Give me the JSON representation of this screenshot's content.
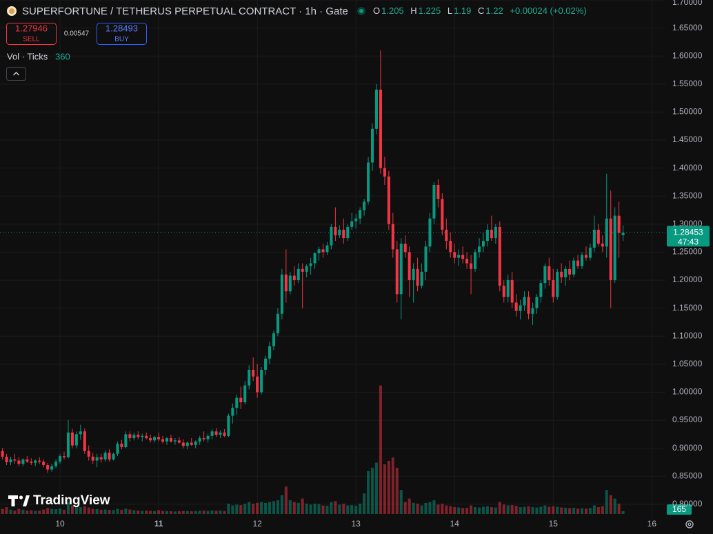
{
  "header": {
    "title": "SUPERFORTUNE / TETHERUS PERPETUAL CONTRACT · 1h · Gate",
    "ohlc_labels": [
      "O",
      "H",
      "L",
      "C"
    ],
    "change": "+0.00024 (+0.02%)"
  },
  "trade": {
    "sell_price": "1.27946",
    "sell_label": "SELL",
    "spread": "0.00547",
    "buy_price": "1.28493",
    "buy_label": "BUY"
  },
  "legend": {
    "volume_label": "Vol · Ticks"
  },
  "branding": "TradingView",
  "chart_data": {
    "type": "candlestick",
    "up_color": "#089981",
    "down_color": "#f23645",
    "grid": true,
    "countdown": "47:43",
    "xlim": [
      -14.6,
      147.3
    ],
    "xticks": [
      {
        "value": 0,
        "label": "10"
      },
      {
        "value": 24,
        "label": "11"
      },
      {
        "value": 48,
        "label": "12"
      },
      {
        "value": 72,
        "label": "13"
      },
      {
        "value": 96,
        "label": "14"
      },
      {
        "value": 120,
        "label": "15"
      },
      {
        "value": 144,
        "label": "16"
      }
    ],
    "ylim": [
      0.774,
      1.7
    ],
    "yticks": [
      {
        "value": 0.8,
        "label": "0.80000"
      },
      {
        "value": 0.85,
        "label": "0.85000"
      },
      {
        "value": 0.9,
        "label": "0.90000"
      },
      {
        "value": 0.95,
        "label": "0.95000"
      },
      {
        "value": 1.0,
        "label": "1.00000"
      },
      {
        "value": 1.05,
        "label": "1.05000"
      },
      {
        "value": 1.1,
        "label": "1.10000"
      },
      {
        "value": 1.15,
        "label": "1.15000"
      },
      {
        "value": 1.2,
        "label": "1.20000"
      },
      {
        "value": 1.25,
        "label": "1.25000"
      },
      {
        "value": 1.3,
        "label": "1.30000"
      },
      {
        "value": 1.35,
        "label": "1.35000"
      },
      {
        "value": 1.4,
        "label": "1.40000"
      },
      {
        "value": 1.45,
        "label": "1.45000"
      },
      {
        "value": 1.5,
        "label": "1.50000"
      },
      {
        "value": 1.55,
        "label": "1.55000"
      },
      {
        "value": 1.6,
        "label": "1.60000"
      },
      {
        "value": 1.65,
        "label": "1.65000"
      },
      {
        "value": 1.7,
        "label": "1.70000"
      }
    ],
    "vol_ylim": [
      0,
      30000
    ],
    "x": [
      -14,
      -13,
      -12,
      -11,
      -10,
      -9,
      -8,
      -7,
      -6,
      -5,
      -4,
      -3,
      -2,
      -1,
      0,
      1,
      2,
      3,
      4,
      5,
      6,
      7,
      8,
      9,
      10,
      11,
      12,
      13,
      14,
      15,
      16,
      17,
      18,
      19,
      20,
      21,
      22,
      23,
      24,
      25,
      26,
      27,
      28,
      29,
      30,
      31,
      32,
      33,
      34,
      35,
      36,
      37,
      38,
      39,
      40,
      41,
      42,
      43,
      44,
      45,
      46,
      47,
      48,
      49,
      50,
      51,
      52,
      53,
      54,
      55,
      56,
      57,
      58,
      59,
      60,
      61,
      62,
      63,
      64,
      65,
      66,
      67,
      68,
      69,
      70,
      71,
      72,
      73,
      74,
      75,
      76,
      77,
      78,
      79,
      80,
      81,
      82,
      83,
      84,
      85,
      86,
      87,
      88,
      89,
      90,
      91,
      92,
      93,
      94,
      95,
      96,
      97,
      98,
      99,
      100,
      101,
      102,
      103,
      104,
      105,
      106,
      107,
      108,
      109,
      110,
      111,
      112,
      113,
      114,
      115,
      116,
      117,
      118,
      119,
      120,
      121,
      122,
      123,
      124,
      125,
      126,
      127,
      128,
      129,
      130,
      131,
      132,
      133,
      134,
      135,
      136,
      137
    ],
    "ohlc": [
      [
        0.895,
        0.9,
        0.88,
        0.885
      ],
      [
        0.885,
        0.89,
        0.87,
        0.875
      ],
      [
        0.875,
        0.885,
        0.87,
        0.88
      ],
      [
        0.88,
        0.89,
        0.872,
        0.878
      ],
      [
        0.878,
        0.884,
        0.868,
        0.872
      ],
      [
        0.872,
        0.882,
        0.868,
        0.88
      ],
      [
        0.88,
        0.886,
        0.874,
        0.876
      ],
      [
        0.876,
        0.882,
        0.87,
        0.874
      ],
      [
        0.874,
        0.88,
        0.868,
        0.878
      ],
      [
        0.878,
        0.884,
        0.872,
        0.876
      ],
      [
        0.876,
        0.88,
        0.866,
        0.87
      ],
      [
        0.87,
        0.874,
        0.856,
        0.862
      ],
      [
        0.862,
        0.872,
        0.858,
        0.868
      ],
      [
        0.868,
        0.88,
        0.864,
        0.876
      ],
      [
        0.876,
        0.89,
        0.872,
        0.886
      ],
      [
        0.886,
        0.894,
        0.88,
        0.884
      ],
      [
        0.884,
        0.95,
        0.882,
        0.928
      ],
      [
        0.928,
        0.935,
        0.9,
        0.905
      ],
      [
        0.905,
        0.93,
        0.9,
        0.925
      ],
      [
        0.925,
        0.942,
        0.915,
        0.93
      ],
      [
        0.93,
        0.935,
        0.89,
        0.895
      ],
      [
        0.895,
        0.905,
        0.878,
        0.885
      ],
      [
        0.885,
        0.892,
        0.872,
        0.878
      ],
      [
        0.878,
        0.89,
        0.866,
        0.884
      ],
      [
        0.884,
        0.89,
        0.874,
        0.88
      ],
      [
        0.88,
        0.896,
        0.876,
        0.892
      ],
      [
        0.892,
        0.898,
        0.876,
        0.88
      ],
      [
        0.88,
        0.892,
        0.878,
        0.89
      ],
      [
        0.89,
        0.912,
        0.886,
        0.908
      ],
      [
        0.908,
        0.915,
        0.898,
        0.902
      ],
      [
        0.902,
        0.93,
        0.9,
        0.925
      ],
      [
        0.925,
        0.93,
        0.912,
        0.918
      ],
      [
        0.918,
        0.928,
        0.914,
        0.924
      ],
      [
        0.924,
        0.93,
        0.916,
        0.92
      ],
      [
        0.92,
        0.926,
        0.912,
        0.922
      ],
      [
        0.922,
        0.928,
        0.916,
        0.918
      ],
      [
        0.918,
        0.924,
        0.91,
        0.914
      ],
      [
        0.914,
        0.922,
        0.91,
        0.92
      ],
      [
        0.92,
        0.928,
        0.912,
        0.916
      ],
      [
        0.916,
        0.922,
        0.908,
        0.912
      ],
      [
        0.912,
        0.92,
        0.906,
        0.918
      ],
      [
        0.918,
        0.924,
        0.91,
        0.912
      ],
      [
        0.912,
        0.918,
        0.906,
        0.914
      ],
      [
        0.914,
        0.92,
        0.908,
        0.91
      ],
      [
        0.91,
        0.916,
        0.9,
        0.904
      ],
      [
        0.904,
        0.912,
        0.898,
        0.91
      ],
      [
        0.91,
        0.918,
        0.904,
        0.906
      ],
      [
        0.906,
        0.914,
        0.9,
        0.912
      ],
      [
        0.912,
        0.922,
        0.906,
        0.918
      ],
      [
        0.918,
        0.93,
        0.912,
        0.916
      ],
      [
        0.916,
        0.926,
        0.91,
        0.922
      ],
      [
        0.922,
        0.934,
        0.916,
        0.93
      ],
      [
        0.93,
        0.936,
        0.92,
        0.924
      ],
      [
        0.924,
        0.932,
        0.918,
        0.928
      ],
      [
        0.928,
        0.934,
        0.92,
        0.922
      ],
      [
        0.922,
        0.962,
        0.92,
        0.958
      ],
      [
        0.958,
        0.98,
        0.944,
        0.972
      ],
      [
        0.972,
        0.996,
        0.96,
        0.99
      ],
      [
        0.99,
        1.01,
        0.97,
        0.982
      ],
      [
        0.982,
        1.02,
        0.978,
        1.012
      ],
      [
        1.012,
        1.048,
        1.005,
        1.04
      ],
      [
        1.04,
        1.062,
        1.02,
        1.028
      ],
      [
        1.028,
        1.05,
        0.99,
        1.0
      ],
      [
        1.0,
        1.045,
        0.996,
        1.04
      ],
      [
        1.04,
        1.065,
        1.03,
        1.06
      ],
      [
        1.06,
        1.09,
        1.05,
        1.082
      ],
      [
        1.082,
        1.11,
        1.075,
        1.105
      ],
      [
        1.105,
        1.15,
        1.1,
        1.14
      ],
      [
        1.14,
        1.22,
        1.13,
        1.21
      ],
      [
        1.21,
        1.255,
        1.16,
        1.18
      ],
      [
        1.18,
        1.215,
        1.175,
        1.208
      ],
      [
        1.208,
        1.225,
        1.19,
        1.2
      ],
      [
        1.2,
        1.23,
        1.195,
        1.22
      ],
      [
        1.22,
        1.23,
        1.15,
        1.215
      ],
      [
        1.215,
        1.228,
        1.205,
        1.225
      ],
      [
        1.225,
        1.24,
        1.21,
        1.23
      ],
      [
        1.23,
        1.25,
        1.22,
        1.248
      ],
      [
        1.248,
        1.26,
        1.235,
        1.255
      ],
      [
        1.255,
        1.265,
        1.24,
        1.25
      ],
      [
        1.25,
        1.268,
        1.245,
        1.262
      ],
      [
        1.262,
        1.3,
        1.255,
        1.295
      ],
      [
        1.295,
        1.33,
        1.27,
        1.28
      ],
      [
        1.28,
        1.298,
        1.275,
        1.29
      ],
      [
        1.29,
        1.31,
        1.265,
        1.275
      ],
      [
        1.275,
        1.3,
        1.27,
        1.295
      ],
      [
        1.295,
        1.32,
        1.29,
        1.305
      ],
      [
        1.305,
        1.318,
        1.292,
        1.31
      ],
      [
        1.31,
        1.33,
        1.3,
        1.325
      ],
      [
        1.325,
        1.345,
        1.315,
        1.34
      ],
      [
        1.34,
        1.42,
        1.335,
        1.41
      ],
      [
        1.41,
        1.48,
        1.395,
        1.47
      ],
      [
        1.47,
        1.55,
        1.46,
        1.54
      ],
      [
        1.54,
        1.61,
        1.39,
        1.4
      ],
      [
        1.4,
        1.42,
        1.37,
        1.385
      ],
      [
        1.385,
        1.395,
        1.29,
        1.3
      ],
      [
        1.3,
        1.32,
        1.24,
        1.255
      ],
      [
        1.255,
        1.27,
        1.16,
        1.175
      ],
      [
        1.175,
        1.275,
        1.13,
        1.265
      ],
      [
        1.265,
        1.28,
        1.24,
        1.25
      ],
      [
        1.25,
        1.26,
        1.17,
        1.2
      ],
      [
        1.2,
        1.23,
        1.16,
        1.22
      ],
      [
        1.22,
        1.24,
        1.18,
        1.19
      ],
      [
        1.19,
        1.23,
        1.185,
        1.215
      ],
      [
        1.215,
        1.27,
        1.2,
        1.26
      ],
      [
        1.26,
        1.32,
        1.25,
        1.31
      ],
      [
        1.31,
        1.375,
        1.3,
        1.37
      ],
      [
        1.37,
        1.38,
        1.33,
        1.345
      ],
      [
        1.345,
        1.355,
        1.28,
        1.29
      ],
      [
        1.29,
        1.31,
        1.255,
        1.27
      ],
      [
        1.27,
        1.285,
        1.24,
        1.25
      ],
      [
        1.25,
        1.265,
        1.23,
        1.24
      ],
      [
        1.24,
        1.255,
        1.225,
        1.245
      ],
      [
        1.245,
        1.26,
        1.23,
        1.238
      ],
      [
        1.238,
        1.25,
        1.22,
        1.23
      ],
      [
        1.23,
        1.245,
        1.175,
        1.22
      ],
      [
        1.22,
        1.255,
        1.215,
        1.25
      ],
      [
        1.25,
        1.275,
        1.24,
        1.26
      ],
      [
        1.26,
        1.285,
        1.25,
        1.27
      ],
      [
        1.27,
        1.3,
        1.26,
        1.29
      ],
      [
        1.29,
        1.315,
        1.27,
        1.275
      ],
      [
        1.275,
        1.3,
        1.265,
        1.295
      ],
      [
        1.295,
        1.305,
        1.18,
        1.19
      ],
      [
        1.19,
        1.2,
        1.16,
        1.17
      ],
      [
        1.17,
        1.21,
        1.16,
        1.2
      ],
      [
        1.2,
        1.215,
        1.15,
        1.16
      ],
      [
        1.16,
        1.175,
        1.135,
        1.145
      ],
      [
        1.145,
        1.165,
        1.13,
        1.155
      ],
      [
        1.155,
        1.18,
        1.145,
        1.17
      ],
      [
        1.17,
        1.18,
        1.13,
        1.14
      ],
      [
        1.14,
        1.16,
        1.12,
        1.15
      ],
      [
        1.15,
        1.175,
        1.14,
        1.17
      ],
      [
        1.17,
        1.2,
        1.16,
        1.195
      ],
      [
        1.195,
        1.23,
        1.185,
        1.225
      ],
      [
        1.225,
        1.24,
        1.19,
        1.2
      ],
      [
        1.2,
        1.22,
        1.16,
        1.17
      ],
      [
        1.17,
        1.22,
        1.165,
        1.215
      ],
      [
        1.215,
        1.23,
        1.195,
        1.205
      ],
      [
        1.205,
        1.225,
        1.19,
        1.22
      ],
      [
        1.22,
        1.235,
        1.2,
        1.21
      ],
      [
        1.21,
        1.24,
        1.205,
        1.235
      ],
      [
        1.235,
        1.245,
        1.22,
        1.225
      ],
      [
        1.225,
        1.25,
        1.22,
        1.245
      ],
      [
        1.245,
        1.26,
        1.235,
        1.24
      ],
      [
        1.24,
        1.265,
        1.235,
        1.258
      ],
      [
        1.258,
        1.315,
        1.25,
        1.29
      ],
      [
        1.29,
        1.3,
        1.26,
        1.265
      ],
      [
        1.265,
        1.28,
        1.25,
        1.26
      ],
      [
        1.26,
        1.39,
        1.24,
        1.31
      ],
      [
        1.31,
        1.36,
        1.15,
        1.2
      ],
      [
        1.2,
        1.33,
        1.195,
        1.315
      ],
      [
        1.315,
        1.34,
        1.24,
        1.28429
      ],
      [
        1.28032,
        1.29777,
        1.26989,
        1.28453
      ]
    ],
    "volumes": [
      300,
      400,
      250,
      200,
      300,
      250,
      200,
      220,
      180,
      200,
      260,
      350,
      300,
      280,
      320,
      250,
      700,
      500,
      420,
      400,
      450,
      380,
      300,
      280,
      250,
      260,
      240,
      230,
      300,
      250,
      320,
      260,
      220,
      200,
      180,
      200,
      190,
      170,
      220,
      180,
      170,
      160,
      150,
      160,
      180,
      170,
      160,
      170,
      190,
      200,
      180,
      210,
      190,
      200,
      180,
      600,
      500,
      550,
      520,
      600,
      700,
      600,
      650,
      700,
      650,
      700,
      750,
      800,
      1100,
      1600,
      800,
      700,
      650,
      900,
      600,
      550,
      600,
      580,
      500,
      480,
      700,
      750,
      550,
      600,
      500,
      520,
      480,
      600,
      1200,
      2500,
      2700,
      3000,
      7500,
      2900,
      3100,
      3300,
      2700,
      1400,
      700,
      900,
      650,
      600,
      500,
      650,
      700,
      800,
      550,
      600,
      500,
      450,
      400,
      380,
      350,
      360,
      500,
      400,
      380,
      420,
      450,
      400,
      380,
      700,
      550,
      500,
      520,
      480,
      400,
      420,
      450,
      400,
      380,
      420,
      500,
      420,
      450,
      420,
      380,
      360,
      340,
      360,
      320,
      340,
      320,
      350,
      500,
      400,
      450,
      1400,
      1100,
      900,
      600,
      165
    ]
  }
}
